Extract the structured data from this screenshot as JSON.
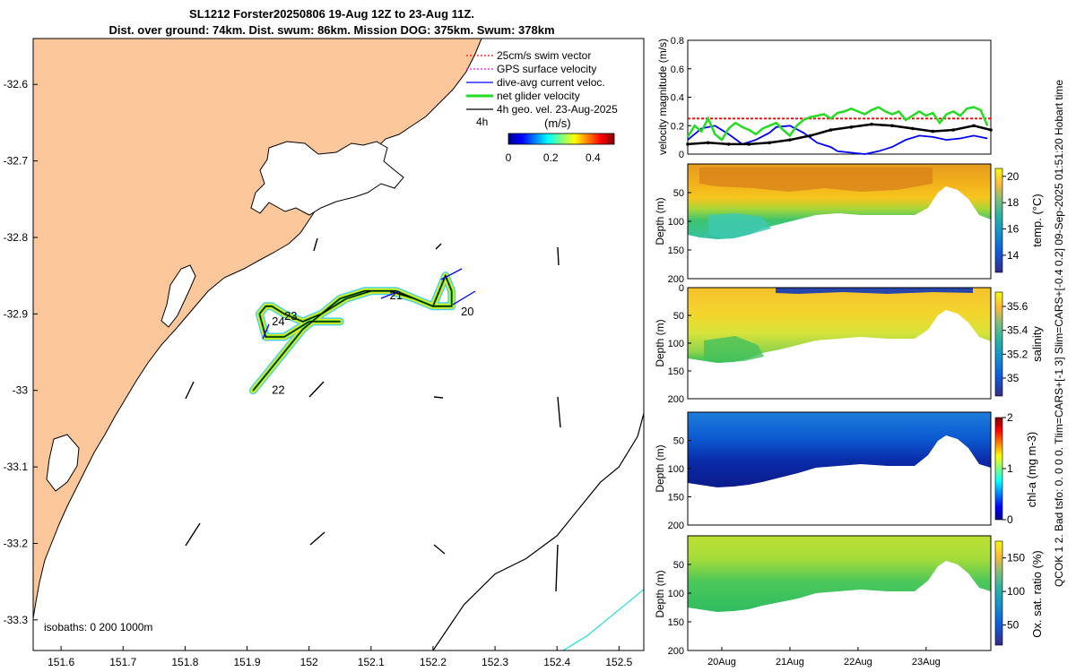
{
  "header": {
    "title_line1": "SL1212 Forster20250806 19-Aug 12Z to 23-Aug 11Z.",
    "title_line2": "Dist. over ground: 74km. Dist. swum: 86km. Mission DOG: 375km. Swum: 378km"
  },
  "side_text": "QCOK 1 2. Bad tsfo: 0. 0 0 0. Tlim=CARS+[-1 3] Slim=CARS+[-0.4 0.2] 09-Sep-2025 01:51:20 Hobart time",
  "colors": {
    "land": "#fcc89b",
    "ocean": "#ffffff",
    "track": "#000000",
    "swim": "#ff0000",
    "gps": "#ff00ff",
    "current": "#0000ff",
    "net": "#00dd00",
    "isobath_200": "#000000",
    "isobath_1000": "#22dddd"
  },
  "chart_data": [
    {
      "type": "map",
      "x_ticks": [
        "151.6",
        "151.7",
        "151.8",
        "151.9",
        "152",
        "152.1",
        "152.2",
        "152.3",
        "152.4",
        "152.5"
      ],
      "x_tick_values": [
        151.6,
        151.7,
        151.8,
        151.9,
        152.0,
        152.1,
        152.2,
        152.3,
        152.4,
        152.5
      ],
      "xlim": [
        151.555,
        152.54
      ],
      "y_ticks": [
        "-32.6",
        "-32.7",
        "-32.8",
        "-32.9",
        "-33",
        "-33.1",
        "-33.2",
        "-33.3"
      ],
      "y_tick_values": [
        -32.6,
        -32.7,
        -32.8,
        -32.9,
        -33.0,
        -33.1,
        -33.2,
        -33.3
      ],
      "ylim": [
        -33.34,
        -32.54
      ],
      "legend": {
        "items": [
          "25cm/s swim vector",
          "GPS surface velocity",
          "dive-avg current veloc.",
          "net glider velocity",
          "4h geo. vel. 23-Aug-2025"
        ],
        "scale_label": "4h",
        "colorbar_label": "(m/s)",
        "colorbar_ticks": [
          "0",
          "0.2",
          "0.4"
        ],
        "colorbar_range": [
          0,
          0.5
        ]
      },
      "track_points": [
        [
          151.91,
          -33.0
        ],
        [
          151.94,
          -32.97
        ],
        [
          151.97,
          -32.94
        ],
        [
          151.99,
          -32.92
        ],
        [
          152.02,
          -32.9
        ],
        [
          152.06,
          -32.88
        ],
        [
          152.1,
          -32.87
        ],
        [
          152.14,
          -32.87
        ],
        [
          152.17,
          -32.88
        ],
        [
          152.2,
          -32.89
        ],
        [
          152.23,
          -32.89
        ],
        [
          152.23,
          -32.87
        ],
        [
          152.22,
          -32.85
        ],
        [
          152.2,
          -32.89
        ],
        [
          152.17,
          -32.88
        ],
        [
          152.13,
          -32.87
        ],
        [
          152.09,
          -32.87
        ],
        [
          152.05,
          -32.88
        ],
        [
          152.02,
          -32.9
        ],
        [
          151.99,
          -32.91
        ],
        [
          151.96,
          -32.9
        ],
        [
          151.94,
          -32.89
        ],
        [
          151.93,
          -32.89
        ],
        [
          151.92,
          -32.9
        ],
        [
          151.93,
          -32.93
        ],
        [
          151.96,
          -32.93
        ],
        [
          152.0,
          -32.91
        ],
        [
          152.05,
          -32.91
        ]
      ],
      "day_labels": [
        {
          "text": "20",
          "lon": 152.245,
          "lat": -32.897
        },
        {
          "text": "21",
          "lon": 152.13,
          "lat": -32.876
        },
        {
          "text": "22",
          "lon": 151.94,
          "lat": -33.0
        },
        {
          "text": "23",
          "lon": 151.96,
          "lat": -32.903
        },
        {
          "text": "24",
          "lon": 151.94,
          "lat": -32.91
        }
      ],
      "isobaths_label": "isobaths: 0   200  1000m",
      "isobath_200m": [
        [
          152.2,
          -33.34
        ],
        [
          152.25,
          -33.28
        ],
        [
          152.3,
          -33.24
        ],
        [
          152.35,
          -33.22
        ],
        [
          152.4,
          -33.19
        ],
        [
          152.43,
          -33.16
        ],
        [
          152.47,
          -33.12
        ],
        [
          152.5,
          -33.1
        ],
        [
          152.53,
          -33.06
        ],
        [
          152.54,
          -33.03
        ]
      ],
      "isobath_1000m": [
        [
          152.41,
          -33.34
        ],
        [
          152.45,
          -33.32
        ],
        [
          152.48,
          -33.3
        ],
        [
          152.51,
          -33.28
        ],
        [
          152.54,
          -33.26
        ]
      ]
    },
    {
      "type": "line",
      "ylabel": "velocity magnitude (m/s)",
      "ylim": [
        0,
        0.8
      ],
      "y_ticks": [
        "0",
        "0.2",
        "0.4",
        "0.6",
        "0.8"
      ],
      "y_tick_values": [
        0,
        0.2,
        0.4,
        0.6,
        0.8
      ],
      "xlim": [
        19.5,
        23.95
      ],
      "series": [
        {
          "name": "swim",
          "color": "#ff0000",
          "x": [
            19.5,
            23.95
          ],
          "values": [
            0.25,
            0.25
          ]
        },
        {
          "name": "current",
          "color": "#0000ff",
          "x": [
            19.5,
            19.7,
            19.9,
            20.1,
            20.3,
            20.5,
            20.7,
            20.8,
            21.0,
            21.2,
            21.4,
            21.6,
            21.7,
            21.9,
            22.1,
            22.3,
            22.5,
            22.7,
            22.9,
            23.1,
            23.3,
            23.5,
            23.7,
            23.9
          ],
          "values": [
            0.1,
            0.18,
            0.2,
            0.14,
            0.07,
            0.1,
            0.15,
            0.19,
            0.2,
            0.15,
            0.08,
            0.05,
            0.02,
            0.01,
            0.0,
            0.02,
            0.05,
            0.1,
            0.13,
            0.12,
            0.1,
            0.11,
            0.13,
            0.11
          ]
        },
        {
          "name": "net",
          "color": "#22dd22",
          "x": [
            19.5,
            19.6,
            19.7,
            19.8,
            19.9,
            20.0,
            20.1,
            20.2,
            20.3,
            20.4,
            20.5,
            20.6,
            20.7,
            20.8,
            20.9,
            21.0,
            21.1,
            21.2,
            21.3,
            21.4,
            21.5,
            21.6,
            21.7,
            21.8,
            21.9,
            22.0,
            22.1,
            22.2,
            22.3,
            22.4,
            22.5,
            22.6,
            22.7,
            22.8,
            22.9,
            23.0,
            23.1,
            23.2,
            23.3,
            23.4,
            23.5,
            23.6,
            23.7,
            23.8,
            23.9
          ],
          "values": [
            0.12,
            0.2,
            0.16,
            0.25,
            0.14,
            0.1,
            0.18,
            0.22,
            0.19,
            0.17,
            0.14,
            0.18,
            0.2,
            0.22,
            0.17,
            0.13,
            0.2,
            0.24,
            0.26,
            0.27,
            0.28,
            0.25,
            0.29,
            0.3,
            0.32,
            0.3,
            0.28,
            0.31,
            0.33,
            0.3,
            0.28,
            0.3,
            0.24,
            0.27,
            0.3,
            0.27,
            0.29,
            0.22,
            0.28,
            0.3,
            0.27,
            0.32,
            0.33,
            0.31,
            0.2
          ]
        },
        {
          "name": "geo",
          "color": "#000000",
          "x": [
            19.5,
            19.8,
            20.1,
            20.4,
            20.7,
            21.0,
            21.3,
            21.6,
            21.9,
            22.2,
            22.5,
            22.8,
            23.1,
            23.4,
            23.7,
            23.95
          ],
          "values": [
            0.07,
            0.08,
            0.07,
            0.07,
            0.08,
            0.1,
            0.13,
            0.17,
            0.19,
            0.21,
            0.2,
            0.18,
            0.16,
            0.17,
            0.2,
            0.17
          ]
        }
      ]
    },
    {
      "type": "heatmap",
      "ylabel": "Depth (m)",
      "colorbar_label": "temp. (°C)",
      "colorbar_ticks": [
        "14",
        "16",
        "18",
        "20"
      ],
      "colorbar_range": [
        12.7,
        20.6
      ],
      "ylim": [
        0,
        200
      ],
      "y_ticks": [
        "50",
        "100",
        "150",
        "200"
      ],
      "xlim": [
        19.5,
        23.95
      ]
    },
    {
      "type": "heatmap",
      "ylabel": "Depth (m)",
      "colorbar_label": "salinity",
      "colorbar_ticks": [
        "35",
        "35.2",
        "35.4",
        "35.6"
      ],
      "colorbar_range": [
        34.85,
        35.72
      ],
      "ylim": [
        0,
        200
      ],
      "y_ticks": [
        "0",
        "50",
        "100",
        "150",
        "200"
      ],
      "xlim": [
        19.5,
        23.95
      ]
    },
    {
      "type": "heatmap",
      "ylabel": "Depth (m)",
      "colorbar_label": "chl-a (mg m-3)",
      "colorbar_ticks": [
        "0",
        "1",
        "2"
      ],
      "colorbar_range": [
        0,
        2
      ],
      "ylim": [
        0,
        200
      ],
      "y_ticks": [
        "50",
        "100",
        "150",
        "200"
      ],
      "xlim": [
        19.5,
        23.95
      ]
    },
    {
      "type": "heatmap",
      "ylabel": "Depth (m)",
      "colorbar_label": "Ox. sat. ratio (%)",
      "colorbar_ticks": [
        "50",
        "100",
        "150"
      ],
      "colorbar_range": [
        20,
        175
      ],
      "ylim": [
        0,
        200
      ],
      "y_ticks": [
        "50",
        "100",
        "150",
        "200"
      ],
      "x_ticks": [
        "20Aug",
        "21Aug",
        "22Aug",
        "23Aug"
      ],
      "x_tick_values": [
        20,
        21,
        22,
        23
      ],
      "xlim": [
        19.5,
        23.95
      ]
    }
  ]
}
